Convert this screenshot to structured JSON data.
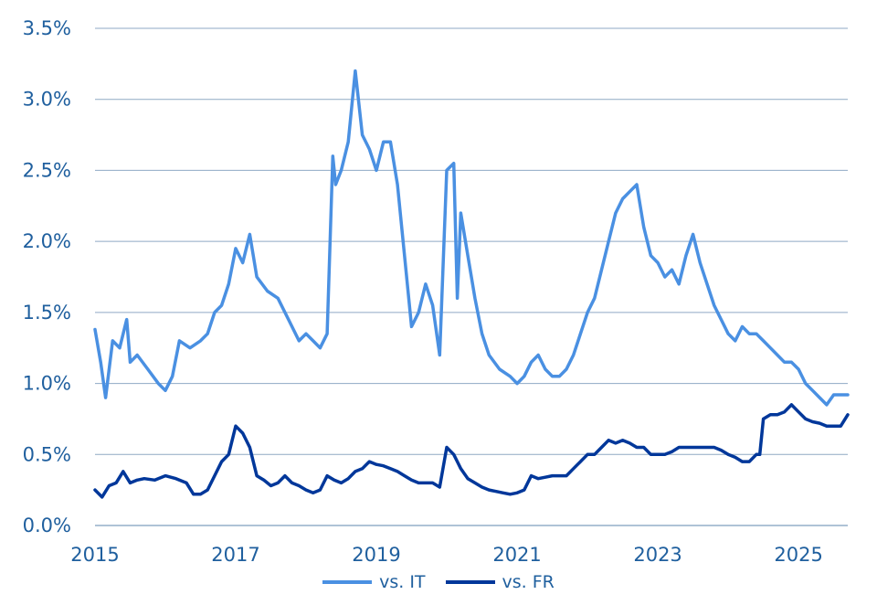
{
  "chart_data": {
    "type": "line",
    "title": "",
    "xlabel": "",
    "ylabel": "",
    "xlim": [
      2015.0,
      2025.7
    ],
    "ylim": [
      0.0,
      3.5
    ],
    "y_ticks": [
      {
        "value": 0.0,
        "label": "0.0%"
      },
      {
        "value": 0.5,
        "label": "0.5%"
      },
      {
        "value": 1.0,
        "label": "1.0%"
      },
      {
        "value": 1.5,
        "label": "1.5%"
      },
      {
        "value": 2.0,
        "label": "2.0%"
      },
      {
        "value": 2.5,
        "label": "2.5%"
      },
      {
        "value": 3.0,
        "label": "3.0%"
      },
      {
        "value": 3.5,
        "label": "3.5%"
      }
    ],
    "x_ticks": [
      {
        "value": 2015,
        "label": "2015"
      },
      {
        "value": 2017,
        "label": "2017"
      },
      {
        "value": 2019,
        "label": "2019"
      },
      {
        "value": 2021,
        "label": "2021"
      },
      {
        "value": 2023,
        "label": "2023"
      },
      {
        "value": 2025,
        "label": "2025"
      }
    ],
    "grid": "horizontal",
    "legend_position": "bottom",
    "series": [
      {
        "name": "vs. IT",
        "color": "#4a90e2",
        "x": [
          2015.0,
          2015.08,
          2015.15,
          2015.25,
          2015.35,
          2015.45,
          2015.5,
          2015.6,
          2015.75,
          2015.9,
          2016.0,
          2016.1,
          2016.2,
          2016.35,
          2016.5,
          2016.6,
          2016.7,
          2016.8,
          2016.9,
          2017.0,
          2017.1,
          2017.2,
          2017.3,
          2017.45,
          2017.6,
          2017.75,
          2017.9,
          2018.0,
          2018.1,
          2018.2,
          2018.3,
          2018.38,
          2018.42,
          2018.5,
          2018.6,
          2018.7,
          2018.8,
          2018.9,
          2019.0,
          2019.1,
          2019.2,
          2019.3,
          2019.4,
          2019.5,
          2019.6,
          2019.7,
          2019.8,
          2019.9,
          2020.0,
          2020.1,
          2020.15,
          2020.2,
          2020.3,
          2020.4,
          2020.5,
          2020.6,
          2020.75,
          2020.9,
          2021.0,
          2021.1,
          2021.2,
          2021.3,
          2021.4,
          2021.5,
          2021.6,
          2021.7,
          2021.8,
          2021.9,
          2022.0,
          2022.1,
          2022.2,
          2022.3,
          2022.4,
          2022.5,
          2022.6,
          2022.7,
          2022.8,
          2022.9,
          2023.0,
          2023.1,
          2023.2,
          2023.3,
          2023.4,
          2023.5,
          2023.6,
          2023.7,
          2023.8,
          2023.9,
          2024.0,
          2024.1,
          2024.2,
          2024.3,
          2024.4,
          2024.5,
          2024.6,
          2024.7,
          2024.8,
          2024.9,
          2025.0,
          2025.1,
          2025.2,
          2025.3,
          2025.4,
          2025.5,
          2025.6,
          2025.7
        ],
        "values": [
          1.38,
          1.15,
          0.9,
          1.3,
          1.25,
          1.45,
          1.15,
          1.2,
          1.1,
          1.0,
          0.95,
          1.05,
          1.3,
          1.25,
          1.3,
          1.35,
          1.5,
          1.55,
          1.7,
          1.95,
          1.85,
          2.05,
          1.75,
          1.65,
          1.6,
          1.45,
          1.3,
          1.35,
          1.3,
          1.25,
          1.35,
          2.6,
          2.4,
          2.5,
          2.7,
          3.2,
          2.75,
          2.65,
          2.5,
          2.7,
          2.7,
          2.4,
          1.9,
          1.4,
          1.5,
          1.7,
          1.55,
          1.2,
          2.5,
          2.55,
          1.6,
          2.2,
          1.9,
          1.6,
          1.35,
          1.2,
          1.1,
          1.05,
          1.0,
          1.05,
          1.15,
          1.2,
          1.1,
          1.05,
          1.05,
          1.1,
          1.2,
          1.35,
          1.5,
          1.6,
          1.8,
          2.0,
          2.2,
          2.3,
          2.35,
          2.4,
          2.1,
          1.9,
          1.85,
          1.75,
          1.8,
          1.7,
          1.9,
          2.05,
          1.85,
          1.7,
          1.55,
          1.45,
          1.35,
          1.3,
          1.4,
          1.35,
          1.35,
          1.3,
          1.25,
          1.2,
          1.15,
          1.15,
          1.1,
          1.0,
          0.95,
          0.9,
          0.85,
          0.92,
          0.92,
          0.92
        ]
      },
      {
        "name": "vs. FR",
        "color": "#00379a",
        "x": [
          2015.0,
          2015.1,
          2015.2,
          2015.3,
          2015.4,
          2015.5,
          2015.6,
          2015.7,
          2015.85,
          2016.0,
          2016.15,
          2016.3,
          2016.4,
          2016.5,
          2016.6,
          2016.7,
          2016.8,
          2016.9,
          2017.0,
          2017.1,
          2017.2,
          2017.3,
          2017.4,
          2017.5,
          2017.6,
          2017.7,
          2017.8,
          2017.9,
          2018.0,
          2018.1,
          2018.2,
          2018.3,
          2018.4,
          2018.5,
          2018.6,
          2018.7,
          2018.8,
          2018.9,
          2019.0,
          2019.1,
          2019.2,
          2019.3,
          2019.4,
          2019.5,
          2019.6,
          2019.7,
          2019.8,
          2019.9,
          2020.0,
          2020.1,
          2020.15,
          2020.2,
          2020.3,
          2020.4,
          2020.5,
          2020.6,
          2020.7,
          2020.8,
          2020.9,
          2021.0,
          2021.1,
          2021.2,
          2021.3,
          2021.4,
          2021.5,
          2021.6,
          2021.7,
          2021.8,
          2021.9,
          2022.0,
          2022.1,
          2022.2,
          2022.3,
          2022.4,
          2022.5,
          2022.6,
          2022.7,
          2022.8,
          2022.9,
          2023.0,
          2023.1,
          2023.2,
          2023.3,
          2023.4,
          2023.5,
          2023.6,
          2023.7,
          2023.8,
          2023.9,
          2024.0,
          2024.1,
          2024.2,
          2024.3,
          2024.4,
          2024.45,
          2024.5,
          2024.6,
          2024.7,
          2024.8,
          2024.9,
          2025.0,
          2025.1,
          2025.2,
          2025.3,
          2025.4,
          2025.5,
          2025.6,
          2025.7
        ],
        "values": [
          0.25,
          0.2,
          0.28,
          0.3,
          0.38,
          0.3,
          0.32,
          0.33,
          0.32,
          0.35,
          0.33,
          0.3,
          0.22,
          0.22,
          0.25,
          0.35,
          0.45,
          0.5,
          0.7,
          0.65,
          0.55,
          0.35,
          0.32,
          0.28,
          0.3,
          0.35,
          0.3,
          0.28,
          0.25,
          0.23,
          0.25,
          0.35,
          0.32,
          0.3,
          0.33,
          0.38,
          0.4,
          0.45,
          0.43,
          0.42,
          0.4,
          0.38,
          0.35,
          0.32,
          0.3,
          0.3,
          0.3,
          0.27,
          0.55,
          0.5,
          0.45,
          0.4,
          0.33,
          0.3,
          0.27,
          0.25,
          0.24,
          0.23,
          0.22,
          0.23,
          0.25,
          0.35,
          0.33,
          0.34,
          0.35,
          0.35,
          0.35,
          0.4,
          0.45,
          0.5,
          0.5,
          0.55,
          0.6,
          0.58,
          0.6,
          0.58,
          0.55,
          0.55,
          0.5,
          0.5,
          0.5,
          0.52,
          0.55,
          0.55,
          0.55,
          0.55,
          0.55,
          0.55,
          0.53,
          0.5,
          0.48,
          0.45,
          0.45,
          0.5,
          0.5,
          0.75,
          0.78,
          0.78,
          0.8,
          0.85,
          0.8,
          0.75,
          0.73,
          0.72,
          0.7,
          0.7,
          0.7,
          0.78
        ]
      }
    ]
  }
}
